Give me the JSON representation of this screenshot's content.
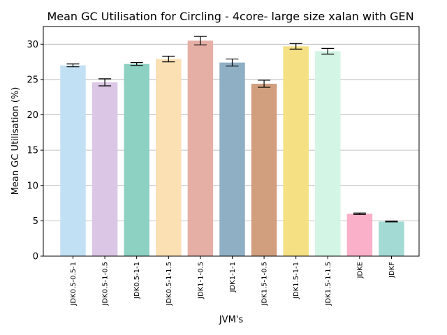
{
  "chart_data": {
    "type": "bar",
    "title": "Mean GC Utilisation for Circling - 4core- large size xalan with GEN",
    "xlabel": "JVM's",
    "ylabel": "Mean GC Utilisation (%)",
    "ylim": [
      0,
      32.5
    ],
    "yticks": [
      0,
      5,
      10,
      15,
      20,
      25,
      30
    ],
    "grid": true,
    "categories": [
      "JDK0.5-0.5-1",
      "JDK0.5-1-0.5",
      "JDK0.5-1-1",
      "JDK0.5-1-1.5",
      "JDK1-1-0.5",
      "JDK1-1-1",
      "JDK1.5-1-0.5",
      "JDK1.5-1-1",
      "JDK1.5-1-1.5",
      "JDKE",
      "JDKF"
    ],
    "values": [
      27.0,
      24.6,
      27.2,
      27.9,
      30.5,
      27.4,
      24.4,
      29.7,
      29.0,
      6.0,
      4.9
    ],
    "errors": [
      0.2,
      0.5,
      0.2,
      0.4,
      0.6,
      0.5,
      0.5,
      0.4,
      0.4,
      0.1,
      0.05
    ],
    "colors": [
      "#c2e0f4",
      "#dbc6e6",
      "#8dd1c2",
      "#fbe0b4",
      "#e5afa6",
      "#8fafc4",
      "#d19f7e",
      "#f6e084",
      "#d3f5e5",
      "#f9b0c8",
      "#a3dbd4"
    ]
  }
}
